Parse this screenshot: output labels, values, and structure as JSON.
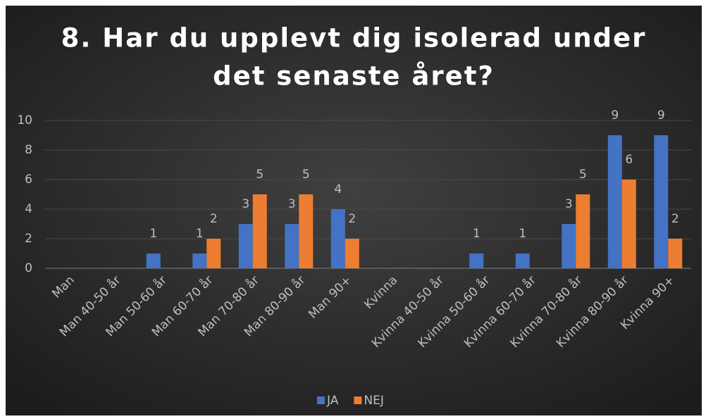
{
  "chart_data": {
    "type": "bar",
    "title": [
      "8. Har du upplevt dig isolerad under",
      "det senaste året?"
    ],
    "categories": [
      "Man",
      "Man 40-50 år",
      "Man 50-60 år",
      "Man 60-70 år",
      "Man 70-80 år",
      "Man 80-90 år",
      "Man 90+",
      "Kvinna",
      "Kvinna 40-50 år",
      "Kvinna 50-60 år",
      "Kvinna 60-70 år",
      "Kvinna 70-80 år",
      "Kvinna 80-90 år",
      "Kvinna 90+"
    ],
    "series": [
      {
        "name": "JA",
        "color": "#4472c4",
        "values": [
          null,
          null,
          1,
          1,
          3,
          3,
          4,
          null,
          null,
          1,
          1,
          3,
          9,
          9
        ]
      },
      {
        "name": "NEJ",
        "color": "#ed7d31",
        "values": [
          null,
          null,
          null,
          2,
          5,
          5,
          2,
          null,
          null,
          null,
          null,
          5,
          6,
          2
        ]
      }
    ],
    "ylim": [
      0,
      10
    ],
    "yticks": [
      0,
      2,
      4,
      6,
      8,
      10
    ],
    "grid": true,
    "legend": "bottom"
  }
}
